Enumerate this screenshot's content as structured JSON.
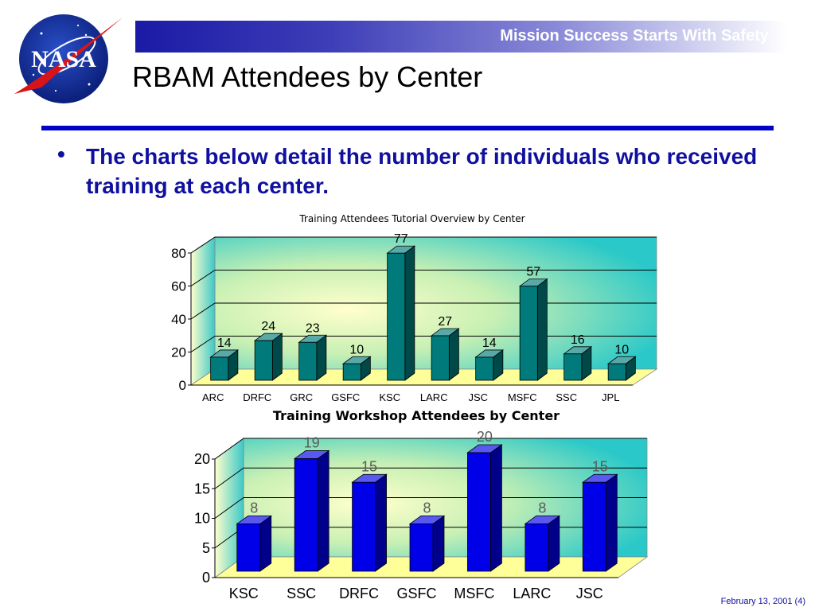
{
  "header": {
    "tagline": "Mission Success Starts With Safety",
    "title": "RBAM Attendees by Center",
    "logo_text": "NASA"
  },
  "bullet": {
    "text": "The charts below detail the number of individuals who received training at each center."
  },
  "footer": {
    "date": "February 13, 2001 (4)"
  },
  "colors": {
    "banner": "#1a1aa6",
    "rule": "#0000c8",
    "bullet": "#1010a0",
    "teal_bar": "#007a7a",
    "blue_bar": "#0000e8",
    "floor": "#ffff99"
  },
  "chart_data": [
    {
      "type": "bar",
      "title": "Training Attendees Tutorial Overview  by Center",
      "categories": [
        "ARC",
        "DRFC",
        "GRC",
        "GSFC",
        "KSC",
        "LARC",
        "JSC",
        "MSFC",
        "SSC",
        "JPL"
      ],
      "values": [
        14,
        24,
        23,
        10,
        77,
        27,
        14,
        57,
        16,
        10
      ],
      "ylim": [
        0,
        80
      ],
      "yticks": [
        0,
        20,
        40,
        60,
        80
      ],
      "grid": true,
      "style": "3d",
      "bar_color": "#007a7a"
    },
    {
      "type": "bar",
      "title": "Training Workshop Attendees by Center",
      "categories": [
        "KSC",
        "SSC",
        "DRFC",
        "GSFC",
        "MSFC",
        "LARC",
        "JSC"
      ],
      "values": [
        8,
        19,
        15,
        8,
        20,
        8,
        15
      ],
      "ylim": [
        0,
        20
      ],
      "yticks": [
        0,
        5,
        10,
        15,
        20
      ],
      "grid": true,
      "style": "3d",
      "bar_color": "#0000e8"
    }
  ]
}
